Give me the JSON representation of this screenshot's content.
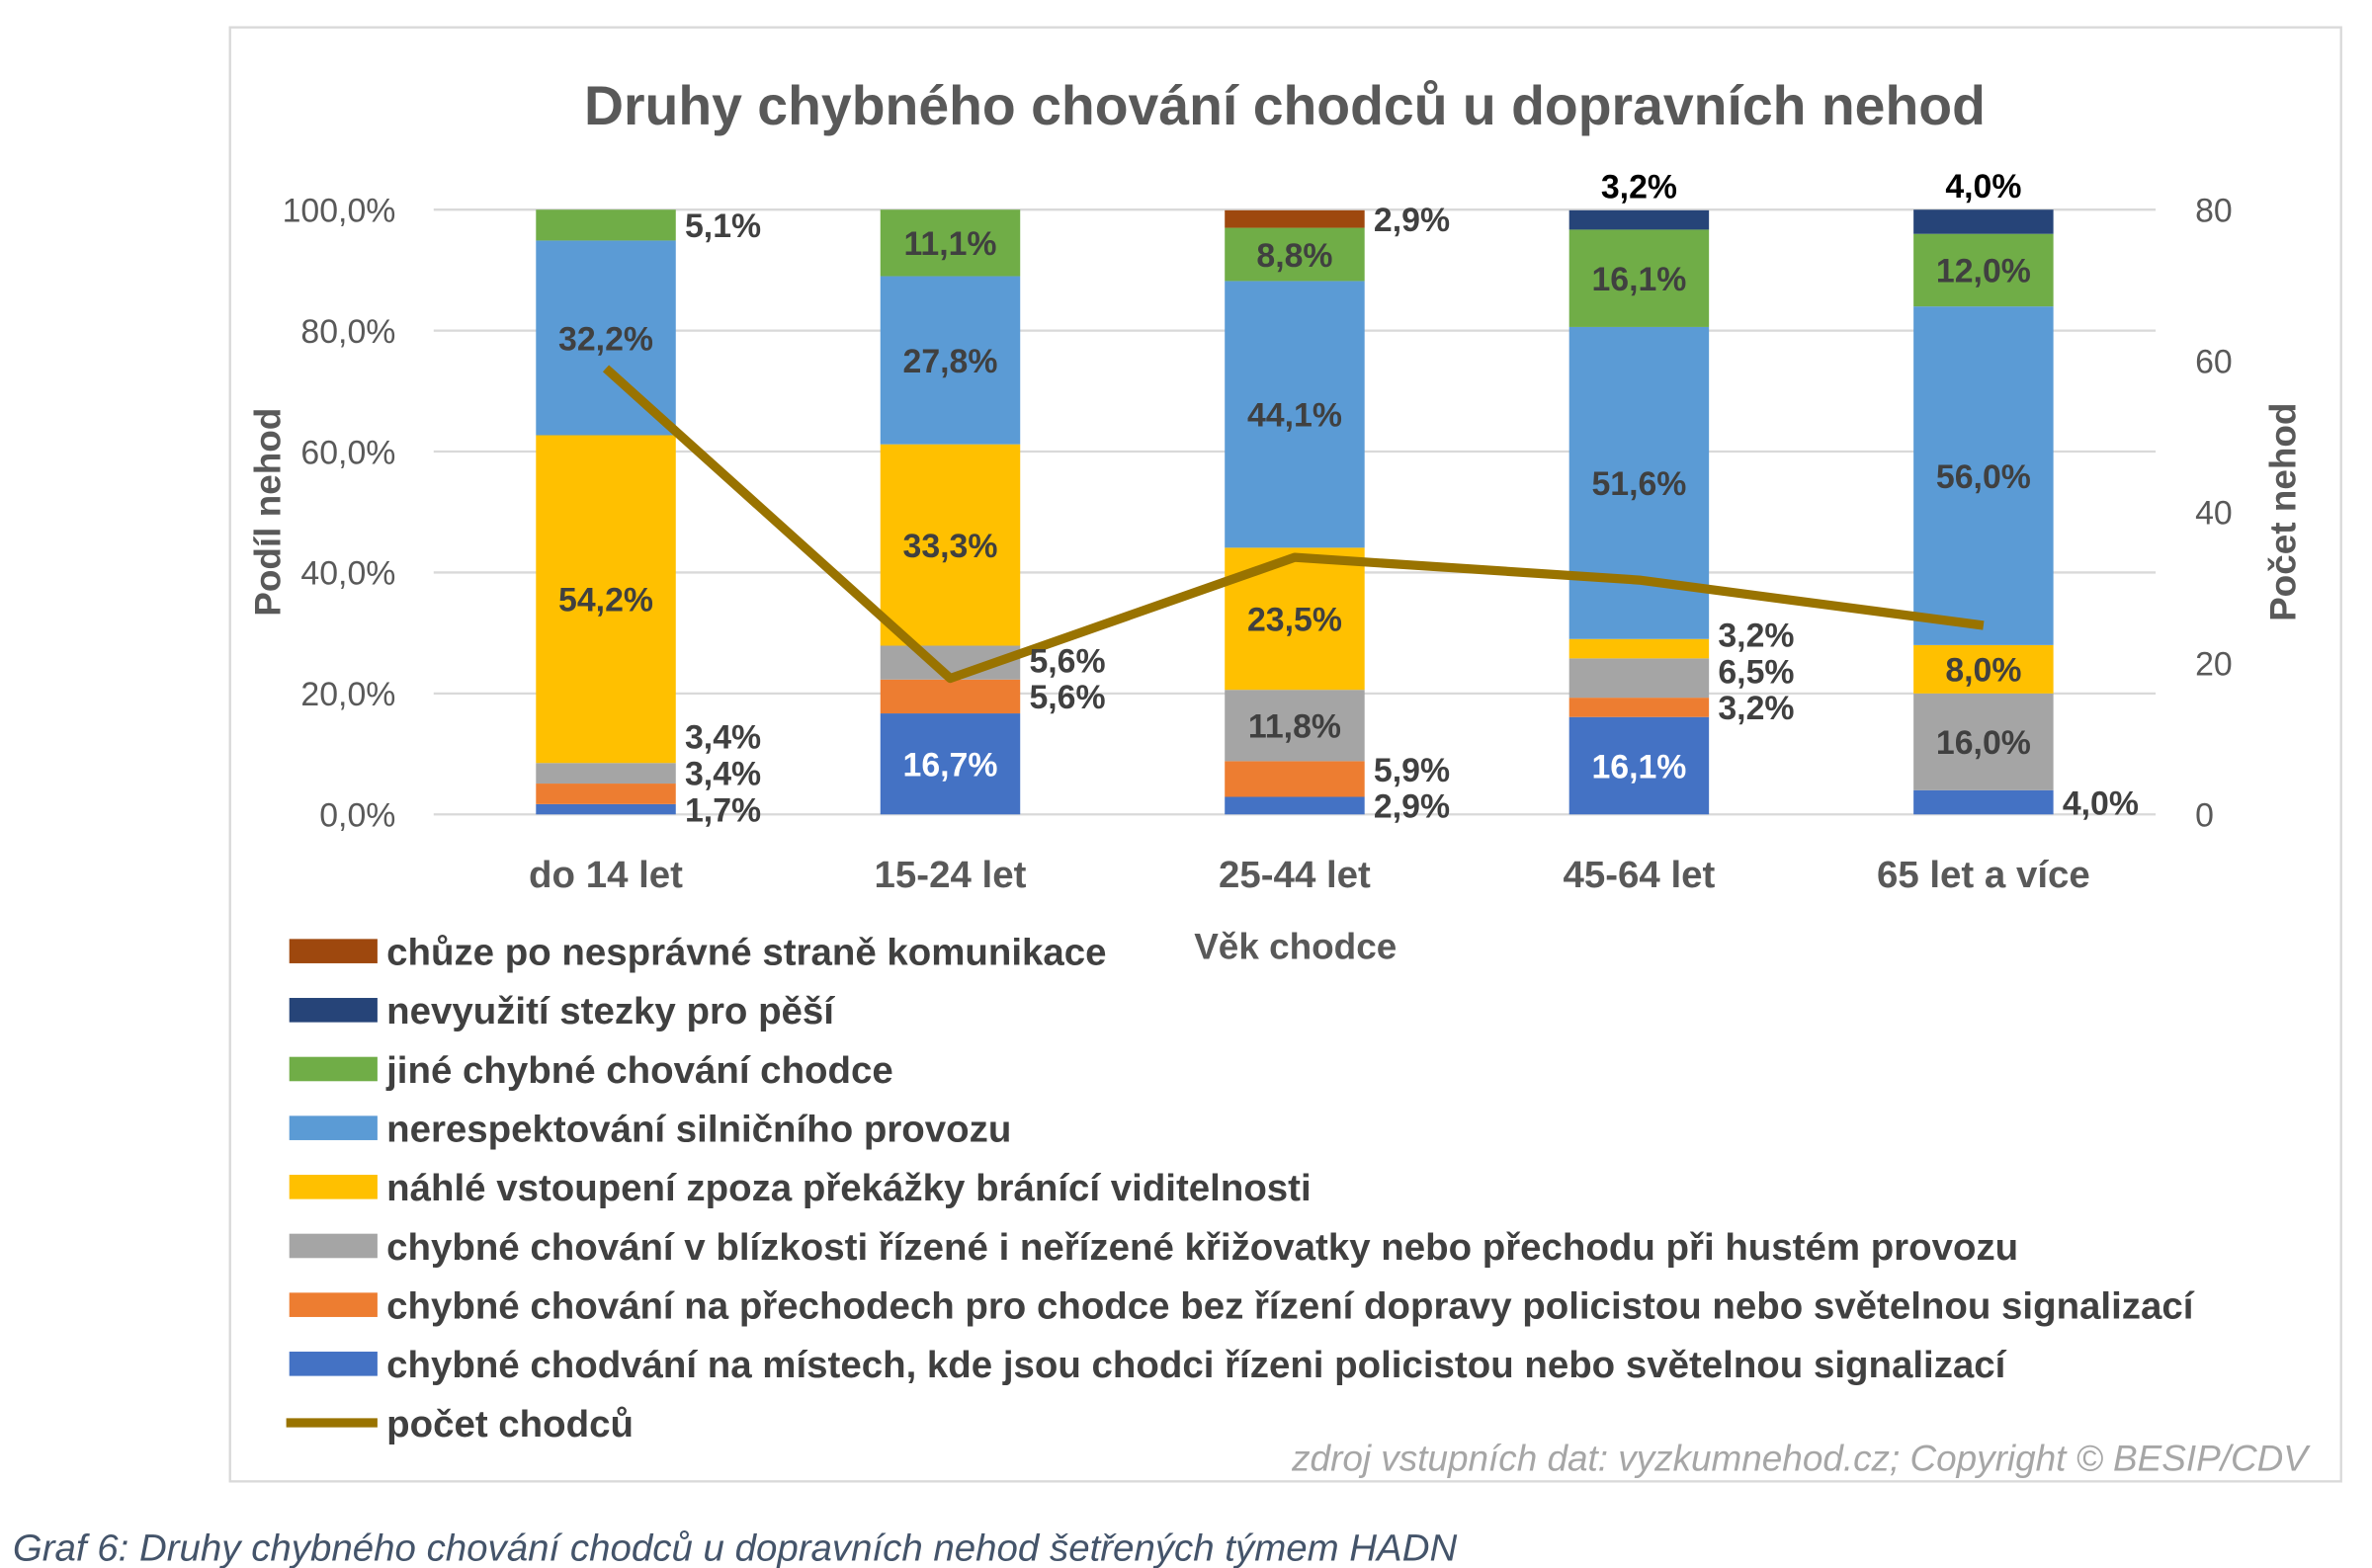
{
  "chart_data": {
    "type": "bar",
    "stacked": true,
    "title": "Druhy chybného chování chodců u dopravních nehod",
    "xlabel": "Věk chodce",
    "ylabel": "Podíl nehod",
    "y2label": "Počet nehod",
    "ylim": [
      0,
      100
    ],
    "y2lim": [
      0,
      80
    ],
    "yticks": [
      "0,0%",
      "20,0%",
      "40,0%",
      "60,0%",
      "80,0%",
      "100,0%"
    ],
    "y2ticks": [
      "0",
      "20",
      "40",
      "60",
      "80"
    ],
    "grid": true,
    "legend_position": "bottom",
    "categories": [
      "do 14 let",
      "15-24 let",
      "25-44 let",
      "45-64 let",
      "65 let a více"
    ],
    "series": [
      {
        "name": "chybné chodvání na místech, kde jsou chodci řízeni policistou nebo světelnou signalizací",
        "color": "#4472C4",
        "values": [
          1.7,
          16.7,
          2.9,
          16.1,
          4.0
        ],
        "labels": [
          "1,7%",
          "16,7%",
          "2,9%",
          "16,1%",
          "4,0%"
        ]
      },
      {
        "name": "chybné chování na přechodech pro chodce bez řízení dopravy policistou nebo světelnou signalizací",
        "color": "#ED7D31",
        "values": [
          3.4,
          5.6,
          5.9,
          3.2,
          0
        ],
        "labels": [
          "3,4%",
          "5,6%",
          "5,9%",
          "3,2%",
          ""
        ]
      },
      {
        "name": "chybné chování v blízkosti řízené i neřízené křižovatky nebo přechodu při hustém provozu",
        "color": "#A5A5A5",
        "values": [
          3.4,
          5.6,
          11.8,
          6.5,
          16.0
        ],
        "labels": [
          "3,4%",
          "5,6%",
          "11,8%",
          "6,5%",
          "16,0%"
        ]
      },
      {
        "name": "náhlé vstoupení zpoza překážky bránící viditelnosti",
        "color": "#FFC000",
        "values": [
          54.2,
          33.3,
          23.5,
          3.2,
          8.0
        ],
        "labels": [
          "54,2%",
          "33,3%",
          "23,5%",
          "3,2%",
          "8,0%"
        ]
      },
      {
        "name": "nerespektování silničního provozu",
        "color": "#5B9BD5",
        "values": [
          32.2,
          27.8,
          44.1,
          51.6,
          56.0
        ],
        "labels": [
          "32,2%",
          "27,8%",
          "44,1%",
          "51,6%",
          "56,0%"
        ]
      },
      {
        "name": "jiné chybné chování chodce",
        "color": "#70AD47",
        "values": [
          5.1,
          11.1,
          8.8,
          16.1,
          12.0
        ],
        "labels": [
          "5,1%",
          "11,1%",
          "8,8%",
          "16,1%",
          "12,0%"
        ]
      },
      {
        "name": "nevyužití stezky pro pěší",
        "color": "#264478",
        "values": [
          0,
          0,
          0,
          3.2,
          4.0
        ],
        "labels": [
          "",
          "",
          "",
          "3,2%",
          "4,0%"
        ]
      },
      {
        "name": "chůze po nesprávné straně komunikace",
        "color": "#9E480E",
        "values": [
          0,
          0,
          2.9,
          0,
          0
        ],
        "labels": [
          "",
          "",
          "2,9%",
          "",
          ""
        ]
      }
    ],
    "line": {
      "name": "počet chodců",
      "color": "#997300",
      "axis": "right",
      "values": [
        59,
        18,
        34,
        31,
        25
      ]
    },
    "legend": [
      "chůze po nesprávné straně komunikace",
      "nevyužití stezky pro pěší",
      "jiné chybné chování chodce",
      "nerespektování silničního provozu",
      "náhlé vstoupení zpoza překážky bránící viditelnosti",
      "chybné chování v blízkosti řízené i neřízené křižovatky nebo přechodu při hustém provozu",
      "chybné chování na přechodech pro chodce bez řízení dopravy policistou nebo světelnou signalizací",
      "chybné chodvání na místech, kde jsou chodci řízeni policistou nebo světelnou signalizací",
      "počet chodců"
    ],
    "legend_colors": [
      "#9E480E",
      "#264478",
      "#70AD47",
      "#5B9BD5",
      "#FFC000",
      "#A5A5A5",
      "#ED7D31",
      "#4472C4",
      "#997300"
    ]
  },
  "source": "zdroj vstupních dat: vyzkumnehod.cz; Copyright © BESIP/CDV",
  "caption": "Graf 6: Druhy chybného chování chodců u dopravních nehod šetřených týmem HADN"
}
